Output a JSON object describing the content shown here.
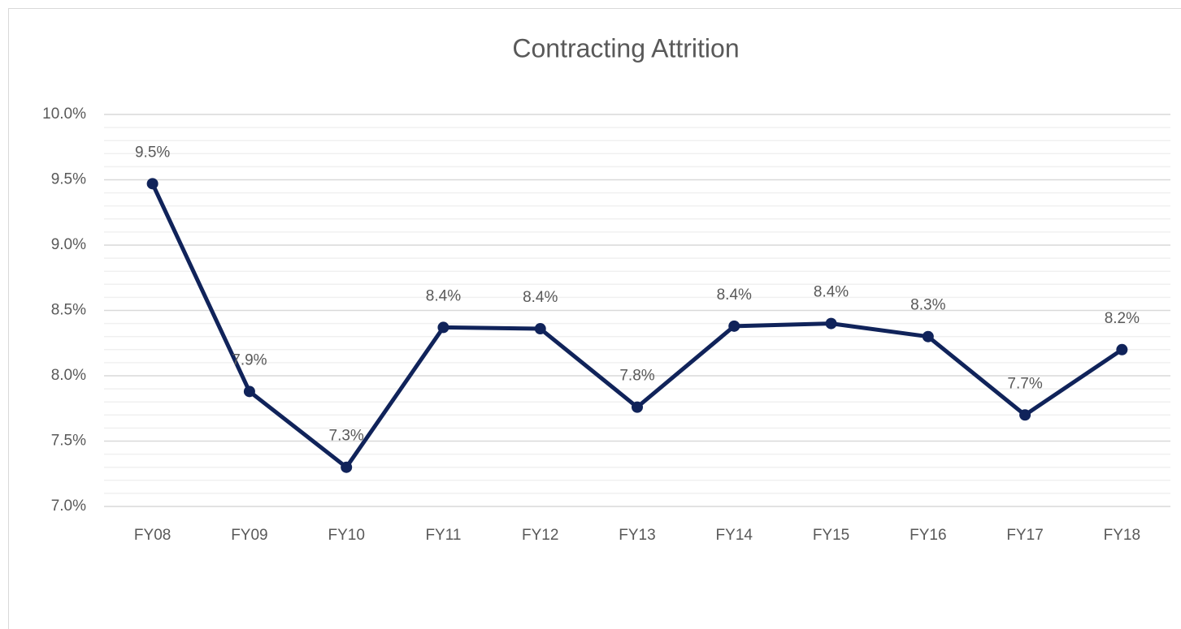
{
  "chart_data": {
    "type": "line",
    "title": "Contracting Attrition",
    "categories": [
      "FY08",
      "FY09",
      "FY10",
      "FY11",
      "FY12",
      "FY13",
      "FY14",
      "FY15",
      "FY16",
      "FY17",
      "FY18"
    ],
    "series": [
      {
        "name": "Contracting Attrition",
        "color": "#10235a",
        "values": [
          9.47,
          7.88,
          7.3,
          8.37,
          8.36,
          7.76,
          8.38,
          8.4,
          8.3,
          7.7,
          8.2
        ],
        "value_labels": [
          "9.5%",
          "7.9%",
          "7.3%",
          "8.4%",
          "8.4%",
          "7.8%",
          "8.4%",
          "8.4%",
          "8.3%",
          "7.7%",
          "8.2%"
        ]
      }
    ],
    "ylim": [
      7,
      10
    ],
    "yticks": [
      {
        "value": 7,
        "label": "7.0%"
      },
      {
        "value": 7.5,
        "label": "7.5%"
      },
      {
        "value": 8,
        "label": "8.0%"
      },
      {
        "value": 8.5,
        "label": "8.5%"
      },
      {
        "value": 9,
        "label": "9.0%"
      },
      {
        "value": 9.5,
        "label": "9.5%"
      },
      {
        "value": 10,
        "label": "10.0%"
      }
    ],
    "minor_yticks": [
      7.1,
      7.2,
      7.3,
      7.4,
      7.6,
      7.7,
      7.8,
      7.9,
      8.1,
      8.2,
      8.3,
      8.4,
      8.6,
      8.7,
      8.8,
      8.9,
      9.1,
      9.2,
      9.3,
      9.4,
      9.6,
      9.7,
      9.8,
      9.9
    ],
    "grid": true
  }
}
